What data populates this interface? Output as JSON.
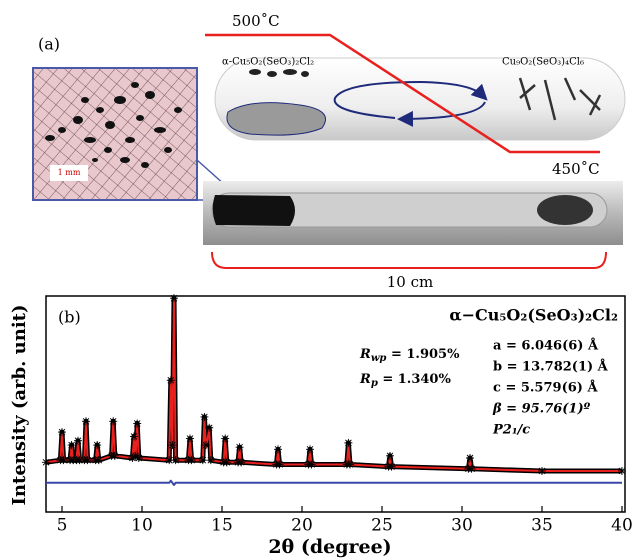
{
  "figure_label_a": "(a)",
  "diagram": {
    "temp_high": "500˚C",
    "temp_low": "450˚C",
    "phase_left": "α-Cu₅O₂(SeO₃)₂Cl₂",
    "phase_right": "Cu₉O₂(SeO₃)₄Cl₆",
    "scale_bar": "1 mm",
    "tube_length": "10 cm"
  },
  "chart_data": {
    "type": "line",
    "panel_label": "(b)",
    "title": "α−Cu₅O₂(SeO₃)₂Cl₂",
    "x_label": "2θ (degree)",
    "y_label": "Intensity (arb. unit)",
    "x": [
      4,
      4.9,
      5,
      5.1,
      5.5,
      5.6,
      5.7,
      5.9,
      6,
      6.1,
      6.4,
      6.5,
      6.6,
      7.1,
      7.2,
      7.3,
      8.1,
      8.2,
      8.3,
      9.4,
      9.5,
      9.6,
      9.7,
      9.8,
      11.7,
      11.8,
      11.9,
      12,
      12.1,
      12.9,
      13,
      13.1,
      13.8,
      13.9,
      14,
      14.2,
      14.3,
      15.1,
      15.2,
      15.3,
      16,
      16.1,
      16.2,
      18.4,
      18.5,
      18.6,
      20.4,
      20.5,
      20.6,
      22.8,
      22.9,
      23,
      25.4,
      25.5,
      25.6,
      30.4,
      30.5,
      30.6,
      35,
      40
    ],
    "series": [
      {
        "color": "#000000",
        "marker": "asterisk",
        "values": [
          23,
          24,
          37,
          24,
          24,
          31,
          24,
          24,
          33,
          24,
          24,
          42,
          24,
          24,
          31,
          24,
          26,
          42,
          26,
          25,
          35,
          26,
          41,
          25,
          24,
          61,
          31,
          99,
          24,
          24,
          34,
          24,
          24,
          44,
          31,
          39,
          24,
          23,
          34,
          23,
          23,
          30,
          23,
          22,
          29,
          22,
          22,
          29,
          22,
          22,
          32,
          22,
          21,
          26,
          21,
          20,
          25,
          20,
          19,
          19
        ]
      },
      {
        "color": "#e8201e",
        "values": [
          23,
          24,
          36,
          24,
          24,
          30,
          24,
          24,
          32,
          24,
          24,
          41,
          24,
          24,
          30,
          24,
          26,
          41,
          26,
          25,
          34,
          26,
          40,
          25,
          24,
          60,
          30,
          98,
          24,
          24,
          33,
          24,
          24,
          43,
          30,
          38,
          24,
          23,
          33,
          23,
          23,
          29,
          23,
          22,
          28,
          22,
          22,
          28,
          22,
          22,
          31,
          22,
          21,
          25,
          21,
          20,
          24,
          20,
          19,
          19
        ]
      },
      {
        "color": "#3a46a8",
        "values": [
          13.5,
          13.5,
          13.5,
          13.5,
          13.5,
          13.5,
          13.5,
          13.5,
          13.5,
          13.5,
          13.5,
          13.5,
          13.5,
          13.5,
          13.5,
          13.5,
          13.5,
          13.5,
          13.5,
          13.5,
          13.5,
          13.5,
          13.5,
          13.5,
          13.5,
          14.5,
          13.5,
          12.5,
          13.5,
          13.5,
          13.5,
          13.5,
          13.5,
          13.5,
          13.5,
          13.5,
          13.5,
          13.5,
          13.5,
          13.5,
          13.5,
          13.5,
          13.5,
          13.5,
          13.5,
          13.5,
          13.5,
          13.5,
          13.5,
          13.5,
          13.5,
          13.5,
          13.5,
          13.5,
          13.5,
          13.5,
          13.5,
          13.5,
          13.5,
          13.5
        ]
      }
    ],
    "xlim": [
      4,
      40
    ],
    "ylim": [
      0,
      100
    ],
    "xticks": [
      5,
      10,
      15,
      20,
      25,
      30,
      35,
      40
    ],
    "annotations": {
      "r_wp": {
        "symbol": "R",
        "subscript": "wp",
        "text": " = 1.905%"
      },
      "r_p": {
        "symbol": "R",
        "subscript": "p",
        "text": " = 1.340%"
      },
      "lattice": [
        "a = 6.046(6) Å",
        "b = 13.782(1) Å",
        "c = 5.579(6) Å"
      ],
      "beta": "β = 95.76(1)º",
      "space_group": "P2₁/c"
    }
  }
}
